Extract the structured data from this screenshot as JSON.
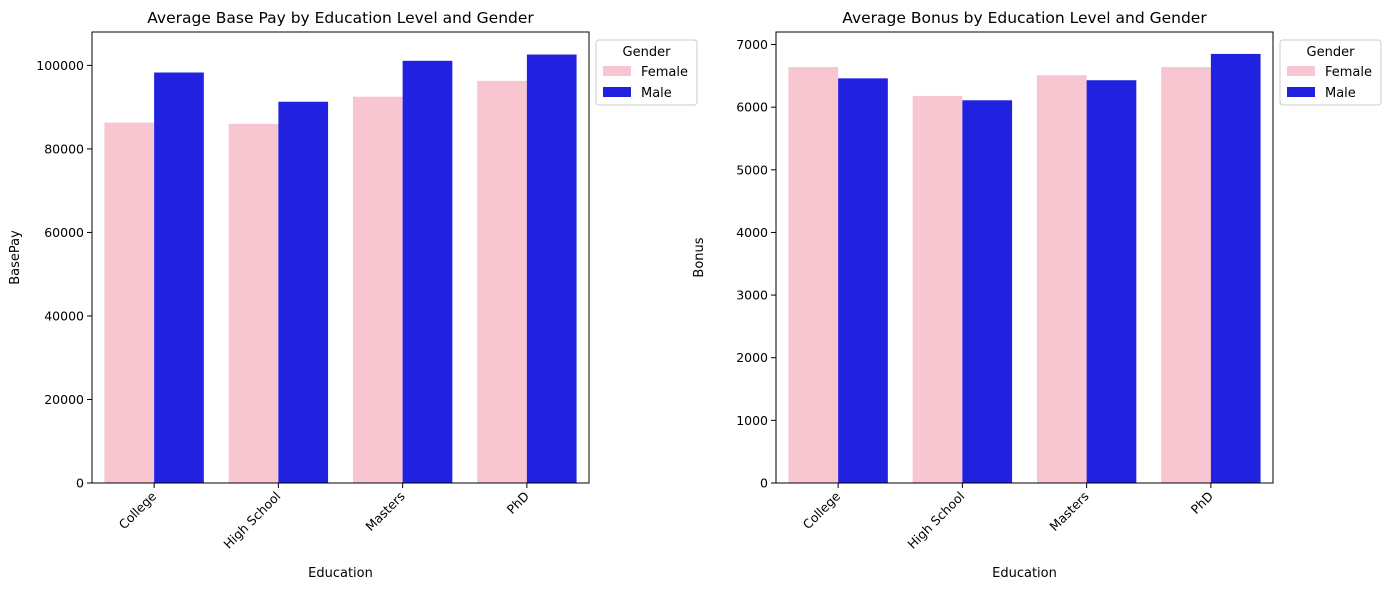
{
  "chart_data": [
    {
      "type": "bar",
      "title": "Average Base Pay by Education Level and Gender",
      "xlabel": "Education",
      "ylabel": "BasePay",
      "categories": [
        "College",
        "High School",
        "Masters",
        "PhD"
      ],
      "ylim": [
        0,
        108000
      ],
      "yticks": [
        0,
        20000,
        40000,
        60000,
        80000,
        100000
      ],
      "ytick_labels": [
        "0",
        "20000",
        "40000",
        "60000",
        "80000",
        "100000"
      ],
      "legend": {
        "title": "Gender",
        "placement": "outside-top-right"
      },
      "series": [
        {
          "name": "Female",
          "color": "#F7C6D0",
          "values": [
            86300,
            86000,
            92500,
            96300
          ]
        },
        {
          "name": "Male",
          "color": "#2121E0",
          "values": [
            98300,
            91300,
            101100,
            102600
          ]
        }
      ]
    },
    {
      "type": "bar",
      "title": "Average Bonus by Education Level and Gender",
      "xlabel": "Education",
      "ylabel": "Bonus",
      "categories": [
        "College",
        "High School",
        "Masters",
        "PhD"
      ],
      "ylim": [
        0,
        7200
      ],
      "yticks": [
        0,
        1000,
        2000,
        3000,
        4000,
        5000,
        6000,
        7000
      ],
      "ytick_labels": [
        "0",
        "1000",
        "2000",
        "3000",
        "4000",
        "5000",
        "6000",
        "7000"
      ],
      "legend": {
        "title": "Gender",
        "placement": "outside-top-right"
      },
      "series": [
        {
          "name": "Female",
          "color": "#F7C6D0",
          "values": [
            6640,
            6180,
            6510,
            6640
          ]
        },
        {
          "name": "Male",
          "color": "#2121E0",
          "values": [
            6460,
            6110,
            6430,
            6850
          ]
        }
      ]
    }
  ]
}
